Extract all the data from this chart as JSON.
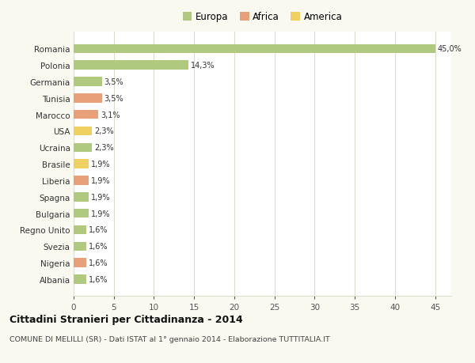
{
  "categories": [
    "Romania",
    "Polonia",
    "Germania",
    "Tunisia",
    "Marocco",
    "USA",
    "Ucraina",
    "Brasile",
    "Liberia",
    "Spagna",
    "Bulgaria",
    "Regno Unito",
    "Svezia",
    "Nigeria",
    "Albania"
  ],
  "values": [
    45.0,
    14.3,
    3.5,
    3.5,
    3.1,
    2.3,
    2.3,
    1.9,
    1.9,
    1.9,
    1.9,
    1.6,
    1.6,
    1.6,
    1.6
  ],
  "labels": [
    "45,0%",
    "14,3%",
    "3,5%",
    "3,5%",
    "3,1%",
    "2,3%",
    "2,3%",
    "1,9%",
    "1,9%",
    "1,9%",
    "1,9%",
    "1,6%",
    "1,6%",
    "1,6%",
    "1,6%"
  ],
  "continent": [
    "Europa",
    "Europa",
    "Europa",
    "Africa",
    "Africa",
    "America",
    "Europa",
    "America",
    "Africa",
    "Europa",
    "Europa",
    "Europa",
    "Europa",
    "Africa",
    "Europa"
  ],
  "colors": {
    "Europa": "#afc97e",
    "Africa": "#e8a07a",
    "America": "#f0d060"
  },
  "title": "Cittadini Stranieri per Cittadinanza - 2014",
  "subtitle": "COMUNE DI MELILLI (SR) - Dati ISTAT al 1° gennaio 2014 - Elaborazione TUTTITALIA.IT",
  "xlim": [
    0,
    47
  ],
  "background_color": "#f9f9f0",
  "plot_bg": "#ffffff",
  "grid_color": "#ddddcc"
}
